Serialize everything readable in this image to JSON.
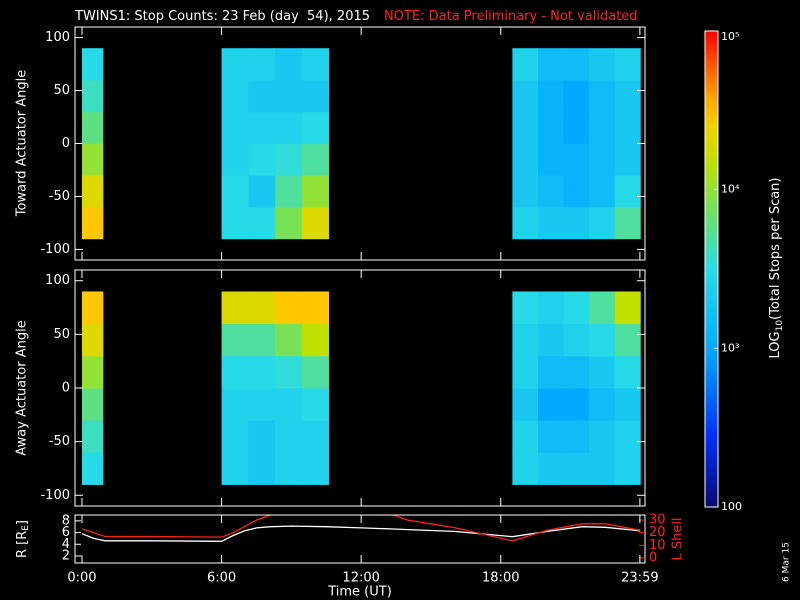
{
  "chart_data": [
    {
      "type": "heatmap",
      "title": "TWINS1: Stop Counts: 23 Feb (day  54), 2015",
      "note": "NOTE: Data Preliminary - Not validated",
      "ylabel": "Toward Actuator Angle",
      "xlim": [
        -0.3,
        24.2
      ],
      "ylim": [
        -110,
        110
      ],
      "yticks": [
        -100,
        -50,
        0,
        50,
        100
      ],
      "x": [
        0,
        0.45,
        0.9,
        6,
        7.15,
        8.3,
        9.45,
        10.6,
        18.5,
        19.6,
        20.7,
        21.8,
        22.9,
        24
      ],
      "y": [
        -90,
        -60,
        -30,
        0,
        30,
        60,
        90
      ],
      "z": [
        [
          30000,
          30000,
          null,
          3000,
          3000,
          8000,
          20000,
          null,
          2500,
          2000,
          2000,
          2500,
          5000
        ],
        [
          20000,
          20000,
          null,
          3000,
          2000,
          5000,
          10000,
          null,
          2000,
          1500,
          1200,
          1500,
          3000
        ],
        [
          10000,
          10000,
          null,
          2500,
          3000,
          3500,
          5000,
          null,
          2000,
          1200,
          1200,
          1500,
          2000
        ],
        [
          6000,
          6000,
          null,
          2500,
          2500,
          2500,
          3000,
          null,
          2000,
          1200,
          1000,
          1500,
          2000
        ],
        [
          4000,
          4000,
          null,
          2500,
          2000,
          2000,
          2000,
          null,
          2000,
          1200,
          1000,
          1500,
          2000
        ],
        [
          3000,
          3000,
          null,
          2500,
          2500,
          2000,
          2500,
          null,
          2500,
          1500,
          1500,
          2000,
          2500
        ]
      ]
    },
    {
      "type": "heatmap",
      "ylabel": "Away Actuator Angle",
      "xlim": [
        -0.3,
        24.2
      ],
      "ylim": [
        -110,
        110
      ],
      "yticks": [
        -100,
        -50,
        0,
        50,
        100
      ],
      "x": [
        0,
        0.45,
        0.9,
        6,
        7.15,
        8.3,
        9.45,
        10.6,
        18.5,
        19.6,
        20.7,
        21.8,
        22.9,
        24
      ],
      "y": [
        -90,
        -60,
        -30,
        0,
        30,
        60,
        90
      ],
      "z": [
        [
          3000,
          3000,
          null,
          2500,
          2000,
          2500,
          2500,
          null,
          2500,
          2000,
          2000,
          2000,
          2500
        ],
        [
          4000,
          4000,
          null,
          2500,
          2000,
          2500,
          2500,
          null,
          2500,
          1500,
          1500,
          2000,
          2500
        ],
        [
          6000,
          6000,
          null,
          2500,
          2500,
          2500,
          3000,
          null,
          2000,
          1000,
          1000,
          1500,
          2000
        ],
        [
          10000,
          10000,
          null,
          3000,
          3000,
          3500,
          5000,
          null,
          2500,
          1500,
          1500,
          2000,
          3000
        ],
        [
          20000,
          20000,
          null,
          5000,
          5000,
          8000,
          15000,
          null,
          2500,
          2000,
          2500,
          3000,
          5000
        ],
        [
          30000,
          30000,
          null,
          20000,
          20000,
          30000,
          30000,
          null,
          3000,
          2500,
          3000,
          5000,
          15000
        ]
      ]
    },
    {
      "type": "line",
      "ylabel_parts": [
        "R [R",
        "E",
        "]"
      ],
      "y2label": "L Shell",
      "xlabel": "Time (UT)",
      "xlim": [
        -0.3,
        24.2
      ],
      "xticks": [
        {
          "value": 0,
          "label": "0:00"
        },
        {
          "value": 6,
          "label": "6:00"
        },
        {
          "value": 12,
          "label": "12:00"
        },
        {
          "value": 18,
          "label": "18:00"
        },
        {
          "value": 23.98,
          "label": "23:59"
        }
      ],
      "ylim": [
        0.8,
        9
      ],
      "yticks": [
        2,
        4,
        6,
        8
      ],
      "y2lim": [
        -4,
        34
      ],
      "y2ticks": [
        0,
        10,
        20,
        30
      ],
      "x": [
        0,
        0.5,
        1,
        3,
        6,
        6.5,
        7,
        7.5,
        8.1,
        9,
        10.5,
        12,
        13.4,
        14,
        16,
        18.5,
        20,
        21.5,
        22.5,
        24
      ],
      "series": [
        {
          "name": "R",
          "color": "#ffffff",
          "values": [
            5.8,
            5,
            4.6,
            4.6,
            4.5,
            5.5,
            6.3,
            6.8,
            7,
            7.1,
            7,
            6.8,
            6.6,
            6.5,
            6.2,
            5.3,
            6.2,
            7,
            6.9,
            6.3
          ]
        },
        {
          "name": "L Shell",
          "color": "#ff2020",
          "axis": "y2",
          "values": [
            23,
            20,
            17,
            17,
            16.5,
            20,
            25,
            30,
            34,
            null,
            null,
            null,
            34,
            30,
            24,
            13.5,
            22,
            27,
            27,
            22
          ]
        }
      ]
    }
  ],
  "colorbar": {
    "label_parts": [
      "LOG",
      "10",
      "(Total Stops per Scan)"
    ],
    "log": true,
    "lim": [
      100,
      100000
    ],
    "ticks": [
      {
        "value": 100000,
        "label": "10⁵"
      },
      {
        "value": 10000,
        "label": "10⁴"
      },
      {
        "value": 1000,
        "label": "10³"
      },
      100
    ]
  },
  "date_stamp": "6 Mar 15"
}
